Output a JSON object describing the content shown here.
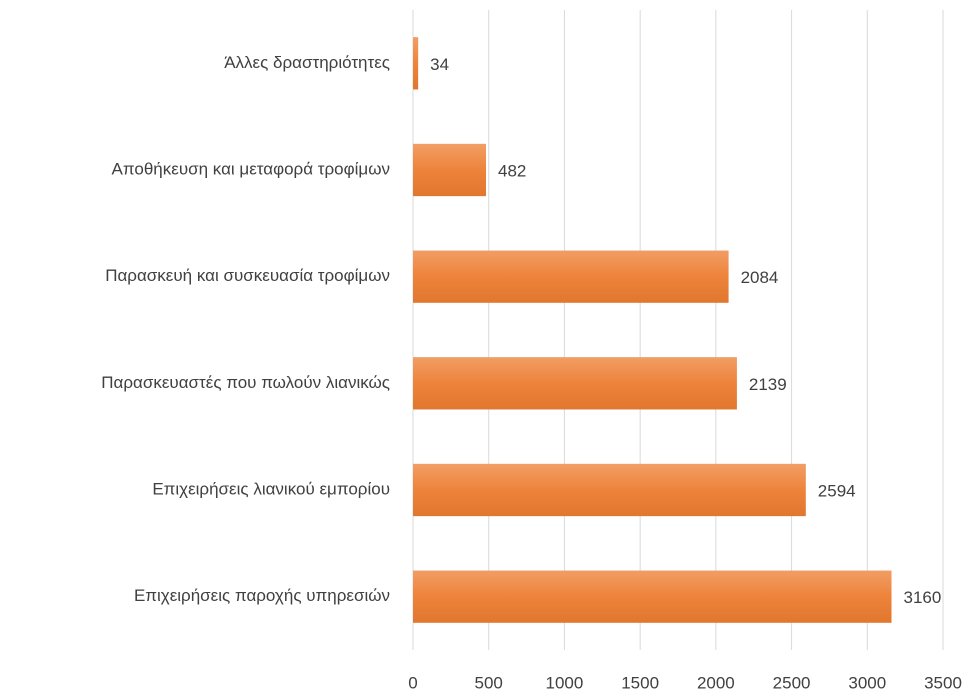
{
  "chart_data": {
    "type": "bar",
    "categories": [
      "Άλλες δραστηριότητες",
      "Αποθήκευση και μεταφορά τροφίμων",
      "Παρασκευή και συσκευασία τροφίμων",
      "Παρασκευαστές που πωλούν λιανικώς",
      "Επιχειρήσεις λιανικού εμπορίου",
      "Επιχειρήσεις παροχής υπηρεσιών"
    ],
    "values": [
      34,
      482,
      2084,
      2139,
      2594,
      3160
    ],
    "color": "#ed7d31",
    "xlim": [
      0,
      3500
    ],
    "xticks": [
      0,
      500,
      1000,
      1500,
      2000,
      2500,
      3000,
      3500
    ],
    "grid": true
  }
}
